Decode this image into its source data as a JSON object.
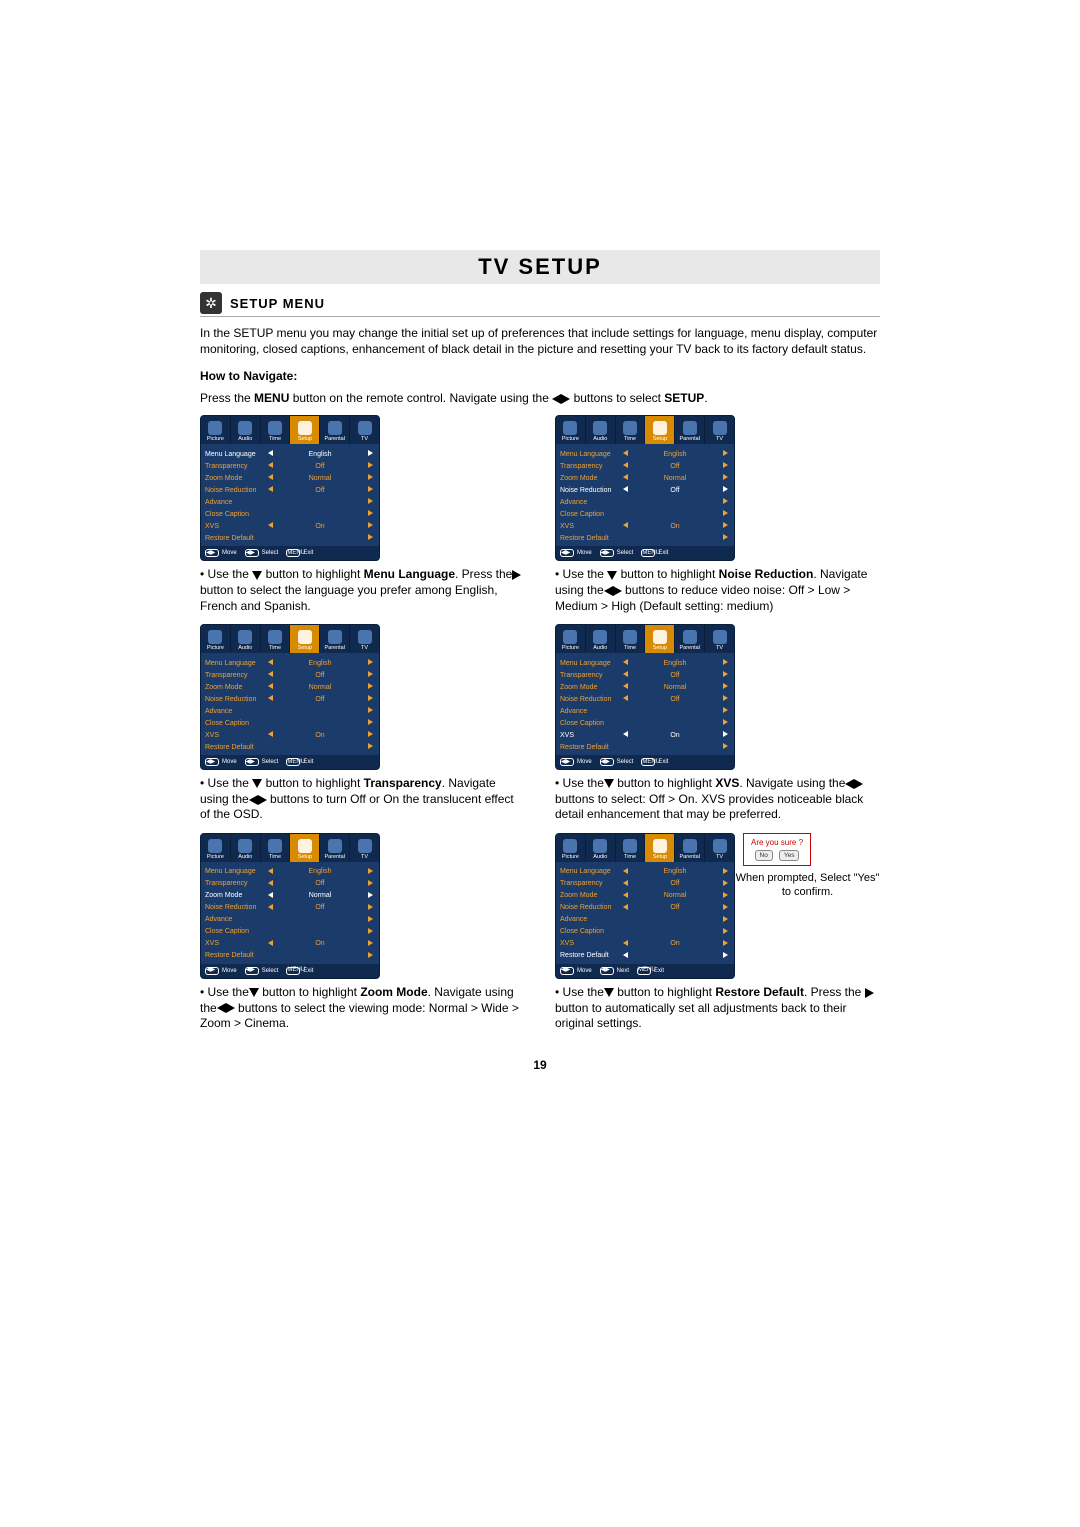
{
  "page": {
    "title": "TV SETUP",
    "section_title": "SETUP MENU",
    "intro": "In the SETUP menu you may change the initial set up of preferences that include settings for language, menu display, computer monitoring, closed captions, enhancement of black detail  in the picture and resetting your TV back to its factory default status.",
    "howto": "How to Navigate:",
    "navline_pre": "Press the ",
    "navline_menu": "MENU",
    "navline_mid": " button on the remote control. Navigate using the",
    "navline_post": "buttons to select ",
    "navline_setup": "SETUP",
    "pagenum": "19"
  },
  "osd": {
    "tabs": [
      "Picture",
      "Audio",
      "Time",
      "Setup",
      "Parental",
      "TV"
    ],
    "rows": [
      {
        "label": "Menu Language",
        "value": "English"
      },
      {
        "label": "Transparency",
        "value": "Off"
      },
      {
        "label": "Zoom Mode",
        "value": "Normal"
      },
      {
        "label": "Noise Reduction",
        "value": "Off"
      },
      {
        "label": "Advance",
        "value": ""
      },
      {
        "label": "Close Caption",
        "value": ""
      },
      {
        "label": "XVS",
        "value": "On"
      },
      {
        "label": "Restore Default",
        "value": ""
      }
    ],
    "foot_move": "Move",
    "foot_select": "Select",
    "foot_next": "Next",
    "foot_exit": "Exit",
    "foot_menu": "MENU"
  },
  "descs": {
    "d1a": "• Use the",
    "d1b": "button to highlight ",
    "d1c": "Menu Language",
    "d1d": ". Press the",
    "d1e": " button to select the language you prefer among English, French and Spanish.",
    "d2a": "• Use the",
    "d2b": "button to highlight ",
    "d2c": "Noise Reduction",
    "d2d": ". Navigate using the",
    "d2e": "buttons to reduce video noise: Off > Low > Medium > High (Default setting: medium)",
    "d3a": "• Use the",
    "d3b": "button to highlight ",
    "d3c": "Transparency",
    "d3d": ". Navigate using the",
    "d3e": "buttons to turn Off or On the translucent effect of the OSD.",
    "d4a": "• Use the",
    "d4b": " button to highlight ",
    "d4c": "XVS",
    "d4d": ". Navigate using the",
    "d4e": "buttons to select: Off > On. XVS provides noticeable black detail enhancement that may be preferred.",
    "d5a": "• Use the",
    "d5b": "button to highlight ",
    "d5c": "Zoom Mode",
    "d5d": ". Navigate using the",
    "d5e": "buttons to select the viewing mode: Normal > Wide > Zoom > Cinema.",
    "d6a": "• Use the",
    "d6b": " button to highlight ",
    "d6c": "Restore Default",
    "d6d": ". Press the ",
    "d6e": "button to automatically set all adjustments back to their original settings."
  },
  "prompt": {
    "q": "Are you sure ?",
    "no": "No",
    "yes": "Yes",
    "note": "When prompted, Select \"Yes\" to confirm."
  },
  "styling": {
    "title_bg": "#e8e8e8",
    "osd_bg": "#1b3c6b",
    "osd_tabbar": "#10294e",
    "osd_active": "#d88a00",
    "highlight_color": "#f0a030"
  }
}
